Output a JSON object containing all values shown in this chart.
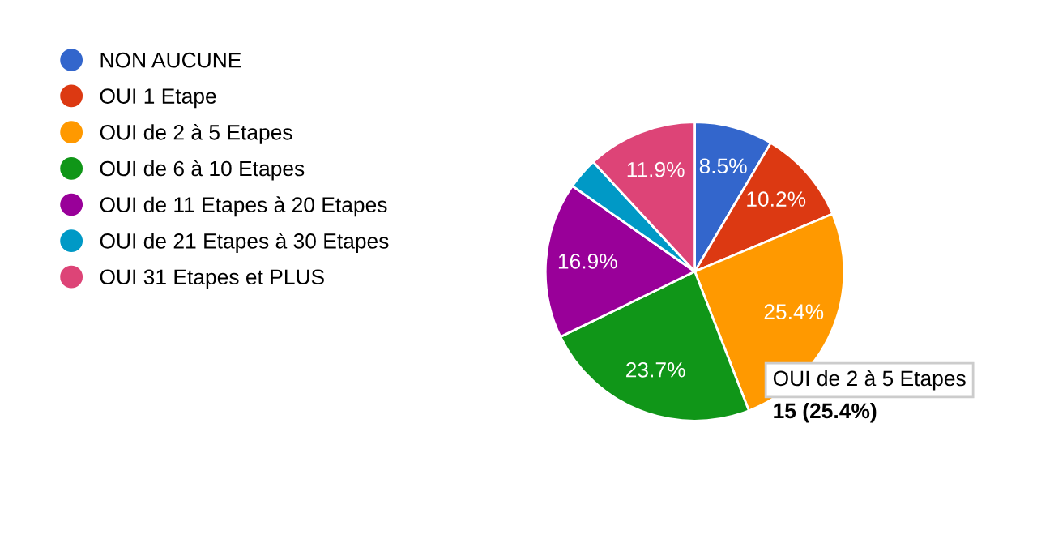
{
  "chart_data": {
    "type": "pie",
    "categories": [
      "NON AUCUNE",
      "OUI 1 Etape",
      "OUI de 2 à 5 Etapes",
      "OUI de 6 à 10 Etapes",
      "OUI de 11 Etapes à 20 Etapes",
      "OUI de 21 Etapes à 30 Etapes",
      "OUI 31 Etapes et PLUS"
    ],
    "values": [
      8.5,
      10.2,
      25.4,
      23.7,
      16.9,
      3.4,
      11.9
    ],
    "colors": [
      "#3366cc",
      "#dc3912",
      "#ff9900",
      "#109618",
      "#990099",
      "#0099c6",
      "#dd4477"
    ],
    "value_labels": [
      "8.5%",
      "10.2%",
      "25.4%",
      "23.7%",
      "16.9%",
      null,
      "11.9%"
    ],
    "legend": "left",
    "annotations": [
      "OUI de 2 à 5 Etapes",
      "15 (25.4%)"
    ]
  }
}
